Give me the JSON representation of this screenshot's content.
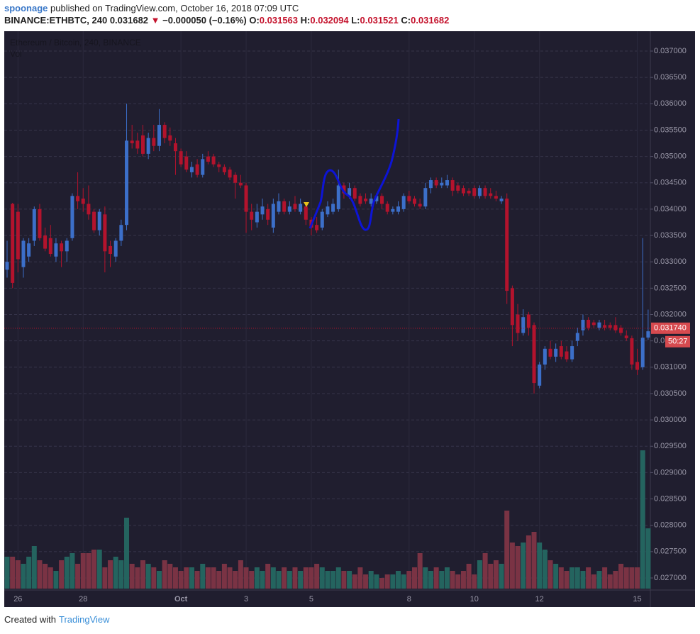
{
  "header": {
    "user": "spoonage",
    "published": "published on TradingView.com, October 16, 2018 07:09 UTC",
    "symbol": "BINANCE:ETHBTC, 240",
    "arrow": "▼",
    "change": "−0.000050 (−0.16%)",
    "o_label": "O:",
    "h_label": "H:",
    "l_label": "L:",
    "c_label": "C:"
  },
  "footer": {
    "created": "Created with",
    "brand": "TradingView"
  },
  "chart_data": {
    "type": "candlestick",
    "title": "Ethereum / Bitcoin, 240, BINANCE",
    "volume_label": "Vol",
    "up_color": "#3c6fc9",
    "down_color": "#b3132d",
    "volume_up_color": "#24645f",
    "volume_down_color": "#7a3344",
    "grid": true,
    "ylim": [
      0.026798,
      0.037377
    ],
    "yticks": [
      {
        "value": 0.027,
        "label": "0.027000"
      },
      {
        "value": 0.0275,
        "label": "0.027500"
      },
      {
        "value": 0.028,
        "label": "0.028000"
      },
      {
        "value": 0.0285,
        "label": "0.028500"
      },
      {
        "value": 0.029,
        "label": "0.029000"
      },
      {
        "value": 0.0295,
        "label": "0.029500"
      },
      {
        "value": 0.03,
        "label": "0.030000"
      },
      {
        "value": 0.0305,
        "label": "0.030500"
      },
      {
        "value": 0.031,
        "label": "0.031000"
      },
      {
        "value": 0.0315,
        "label": "0.031500"
      },
      {
        "value": 0.032,
        "label": "0.032000"
      },
      {
        "value": 0.0325,
        "label": "0.032500"
      },
      {
        "value": 0.033,
        "label": "0.033000"
      },
      {
        "value": 0.0335,
        "label": "0.033500"
      },
      {
        "value": 0.034,
        "label": "0.034000"
      },
      {
        "value": 0.0345,
        "label": "0.034500"
      },
      {
        "value": 0.035,
        "label": "0.035000"
      },
      {
        "value": 0.0355,
        "label": "0.035500"
      },
      {
        "value": 0.036,
        "label": "0.036000"
      },
      {
        "value": 0.0365,
        "label": "0.036500"
      },
      {
        "value": 0.037,
        "label": "0.037000"
      }
    ],
    "last_price": {
      "value": 0.03174,
      "label": "0.031740"
    },
    "countdown": "50:27",
    "categories": [
      null,
      null,
      "26",
      null,
      null,
      null,
      null,
      null,
      null,
      null,
      null,
      null,
      null,
      null,
      "28",
      null,
      null,
      null,
      null,
      null,
      null,
      null,
      null,
      null,
      null,
      null,
      null,
      null,
      null,
      null,
      null,
      null,
      "Oct",
      null,
      null,
      null,
      null,
      null,
      null,
      null,
      null,
      null,
      null,
      null,
      "3",
      null,
      null,
      null,
      null,
      null,
      null,
      null,
      null,
      null,
      null,
      null,
      "5",
      null,
      null,
      null,
      null,
      null,
      null,
      null,
      null,
      null,
      null,
      null,
      null,
      null,
      null,
      null,
      null,
      null,
      "8",
      null,
      null,
      null,
      null,
      null,
      null,
      null,
      null,
      null,
      null,
      null,
      "10",
      null,
      null,
      null,
      null,
      null,
      null,
      null,
      null,
      null,
      null,
      null,
      "12",
      null,
      null,
      null,
      null,
      null,
      null,
      null,
      null,
      null,
      null,
      null,
      null,
      null,
      null,
      null,
      null,
      null,
      "15",
      null,
      null
    ],
    "candles": [
      [
        0.03285,
        0.0334,
        0.0327,
        0.033
      ],
      [
        0.0341,
        0.03412,
        0.0325,
        0.0326
      ],
      [
        0.03395,
        0.0341,
        0.0328,
        0.03305
      ],
      [
        0.0329,
        0.03345,
        0.0327,
        0.0334
      ],
      [
        0.0331,
        0.03345,
        0.033,
        0.03335
      ],
      [
        0.0334,
        0.03405,
        0.0333,
        0.034
      ],
      [
        0.034,
        0.0341,
        0.0334,
        0.03345
      ],
      [
        0.0335,
        0.03365,
        0.0332,
        0.03325
      ],
      [
        0.03345,
        0.0337,
        0.0331,
        0.03315
      ],
      [
        0.0331,
        0.03345,
        0.033,
        0.03335
      ],
      [
        0.03335,
        0.0334,
        0.0329,
        0.0332
      ],
      [
        0.0332,
        0.03345,
        0.033,
        0.0334
      ],
      [
        0.03345,
        0.0343,
        0.0334,
        0.03425
      ],
      [
        0.03425,
        0.0347,
        0.034,
        0.03415
      ],
      [
        0.0342,
        0.0344,
        0.03395,
        0.0341
      ],
      [
        0.0341,
        0.03445,
        0.0338,
        0.0339
      ],
      [
        0.03395,
        0.034,
        0.03355,
        0.0336
      ],
      [
        0.0336,
        0.034,
        0.0335,
        0.03395
      ],
      [
        0.0339,
        0.03405,
        0.0328,
        0.0332
      ],
      [
        0.0333,
        0.0334,
        0.0329,
        0.03315
      ],
      [
        0.0331,
        0.03345,
        0.033,
        0.0334
      ],
      [
        0.0334,
        0.0338,
        0.0333,
        0.0337
      ],
      [
        0.0337,
        0.036,
        0.0336,
        0.0353
      ],
      [
        0.0353,
        0.0356,
        0.03515,
        0.03525
      ],
      [
        0.0353,
        0.03545,
        0.03505,
        0.03515
      ],
      [
        0.0354,
        0.0356,
        0.035,
        0.03505
      ],
      [
        0.03505,
        0.03545,
        0.03495,
        0.03535
      ],
      [
        0.03535,
        0.0356,
        0.0351,
        0.0352
      ],
      [
        0.0352,
        0.0359,
        0.0351,
        0.0356
      ],
      [
        0.0356,
        0.03565,
        0.03525,
        0.03535
      ],
      [
        0.0354,
        0.03555,
        0.0352,
        0.0353
      ],
      [
        0.03525,
        0.03535,
        0.03465,
        0.0351
      ],
      [
        0.0351,
        0.03515,
        0.0348,
        0.03485
      ],
      [
        0.035,
        0.0351,
        0.0347,
        0.03475
      ],
      [
        0.0347,
        0.0349,
        0.0346,
        0.0348
      ],
      [
        0.03485,
        0.03495,
        0.0346,
        0.03465
      ],
      [
        0.03465,
        0.03505,
        0.0346,
        0.03495
      ],
      [
        0.035,
        0.0351,
        0.03485,
        0.0349
      ],
      [
        0.035,
        0.03505,
        0.0348,
        0.03485
      ],
      [
        0.03485,
        0.0349,
        0.0347,
        0.0348
      ],
      [
        0.0348,
        0.03485,
        0.03465,
        0.0347
      ],
      [
        0.03475,
        0.0348,
        0.03455,
        0.0346
      ],
      [
        0.03465,
        0.0347,
        0.0342,
        0.0345
      ],
      [
        0.0345,
        0.03465,
        0.0344,
        0.03445
      ],
      [
        0.03445,
        0.0345,
        0.03355,
        0.03395
      ],
      [
        0.03395,
        0.0341,
        0.0336,
        0.0338
      ],
      [
        0.03375,
        0.0341,
        0.03365,
        0.03395
      ],
      [
        0.0339,
        0.0342,
        0.0338,
        0.03405
      ],
      [
        0.034,
        0.0341,
        0.0337,
        0.0338
      ],
      [
        0.03365,
        0.0342,
        0.03355,
        0.0341
      ],
      [
        0.03395,
        0.0343,
        0.0339,
        0.03415
      ],
      [
        0.03415,
        0.0342,
        0.0339,
        0.03395
      ],
      [
        0.03395,
        0.03415,
        0.0339,
        0.03405
      ],
      [
        0.0341,
        0.03425,
        0.03395,
        0.034
      ],
      [
        0.03395,
        0.0342,
        0.0339,
        0.0341
      ],
      [
        0.03405,
        0.0341,
        0.0337,
        0.0338
      ],
      [
        0.0338,
        0.03385,
        0.0335,
        0.03365
      ],
      [
        0.0337,
        0.03385,
        0.03355,
        0.0336
      ],
      [
        0.03365,
        0.034,
        0.0336,
        0.03395
      ],
      [
        0.0339,
        0.03415,
        0.03385,
        0.03405
      ],
      [
        0.03395,
        0.0342,
        0.0339,
        0.0341
      ],
      [
        0.034,
        0.03475,
        0.03395,
        0.03445
      ],
      [
        0.03445,
        0.0345,
        0.0342,
        0.0343
      ],
      [
        0.03425,
        0.0345,
        0.0342,
        0.0344
      ],
      [
        0.0344,
        0.03445,
        0.03415,
        0.0342
      ],
      [
        0.03425,
        0.0343,
        0.03405,
        0.0341
      ],
      [
        0.0342,
        0.0343,
        0.0341,
        0.03415
      ],
      [
        0.0341,
        0.0343,
        0.03405,
        0.0342
      ],
      [
        0.03415,
        0.0343,
        0.0341,
        0.03425
      ],
      [
        0.03425,
        0.0343,
        0.034,
        0.0341
      ],
      [
        0.0341,
        0.03415,
        0.0339,
        0.03395
      ],
      [
        0.03395,
        0.03405,
        0.0339,
        0.034
      ],
      [
        0.03395,
        0.03415,
        0.0339,
        0.03405
      ],
      [
        0.034,
        0.0343,
        0.03395,
        0.03425
      ],
      [
        0.03425,
        0.03435,
        0.0341,
        0.03415
      ],
      [
        0.0342,
        0.03425,
        0.03405,
        0.0341
      ],
      [
        0.0341,
        0.0342,
        0.034,
        0.03405
      ],
      [
        0.03405,
        0.0345,
        0.034,
        0.0344
      ],
      [
        0.0344,
        0.0346,
        0.0343,
        0.03455
      ],
      [
        0.03455,
        0.0346,
        0.0344,
        0.03445
      ],
      [
        0.03445,
        0.0346,
        0.0344,
        0.0345
      ],
      [
        0.03445,
        0.03465,
        0.0344,
        0.03455
      ],
      [
        0.03455,
        0.0346,
        0.03425,
        0.03435
      ],
      [
        0.03445,
        0.0345,
        0.0343,
        0.03435
      ],
      [
        0.0344,
        0.03445,
        0.03425,
        0.0343
      ],
      [
        0.03435,
        0.0344,
        0.03425,
        0.0343
      ],
      [
        0.0344,
        0.03445,
        0.0342,
        0.03425
      ],
      [
        0.03425,
        0.03445,
        0.0342,
        0.0344
      ],
      [
        0.0344,
        0.03445,
        0.0342,
        0.03425
      ],
      [
        0.0343,
        0.0344,
        0.0342,
        0.03425
      ],
      [
        0.03425,
        0.03435,
        0.03415,
        0.0342
      ],
      [
        0.03415,
        0.03425,
        0.0341,
        0.0342
      ],
      [
        0.0342,
        0.0343,
        0.0322,
        0.03245
      ],
      [
        0.0325,
        0.03255,
        0.0314,
        0.0318
      ],
      [
        0.032,
        0.0322,
        0.0315,
        0.03165
      ],
      [
        0.03165,
        0.0321,
        0.0316,
        0.03195
      ],
      [
        0.032,
        0.03205,
        0.0316,
        0.03175
      ],
      [
        0.0318,
        0.03185,
        0.0305,
        0.0307
      ],
      [
        0.03065,
        0.0311,
        0.0306,
        0.03105
      ],
      [
        0.03105,
        0.0314,
        0.03095,
        0.03135
      ],
      [
        0.03135,
        0.0315,
        0.03115,
        0.0312
      ],
      [
        0.0312,
        0.03145,
        0.0311,
        0.03135
      ],
      [
        0.0314,
        0.0315,
        0.03115,
        0.0312
      ],
      [
        0.0313,
        0.0314,
        0.0311,
        0.03115
      ],
      [
        0.03115,
        0.0315,
        0.0311,
        0.0314
      ],
      [
        0.0315,
        0.03175,
        0.0314,
        0.03165
      ],
      [
        0.0317,
        0.032,
        0.0316,
        0.0319
      ],
      [
        0.0319,
        0.03195,
        0.0317,
        0.03175
      ],
      [
        0.03185,
        0.0319,
        0.03175,
        0.0318
      ],
      [
        0.03175,
        0.0319,
        0.0317,
        0.03185
      ],
      [
        0.0318,
        0.0319,
        0.0317,
        0.03175
      ],
      [
        0.0318,
        0.03185,
        0.0317,
        0.03175
      ],
      [
        0.0318,
        0.03195,
        0.03165,
        0.0317
      ],
      [
        0.03175,
        0.0318,
        0.0316,
        0.03165
      ],
      [
        0.0316,
        0.0317,
        0.0315,
        0.03155
      ],
      [
        0.03155,
        0.0316,
        0.03095,
        0.03105
      ],
      [
        0.0311,
        0.03135,
        0.03085,
        0.03095
      ],
      [
        0.031,
        0.03345,
        0.03095,
        0.03156
      ],
      [
        0.031563,
        0.032094,
        0.031521,
        0.031682
      ]
    ],
    "volume": [
      45,
      45,
      40,
      35,
      45,
      60,
      40,
      35,
      30,
      25,
      40,
      45,
      50,
      35,
      50,
      50,
      55,
      55,
      30,
      40,
      45,
      40,
      100,
      35,
      30,
      40,
      35,
      30,
      25,
      40,
      35,
      30,
      25,
      30,
      30,
      25,
      35,
      30,
      30,
      25,
      35,
      30,
      25,
      40,
      30,
      25,
      30,
      25,
      35,
      30,
      25,
      30,
      25,
      30,
      25,
      30,
      30,
      35,
      30,
      25,
      25,
      30,
      25,
      25,
      20,
      30,
      20,
      25,
      20,
      15,
      20,
      20,
      25,
      20,
      25,
      30,
      50,
      30,
      25,
      30,
      25,
      30,
      25,
      20,
      25,
      35,
      20,
      40,
      50,
      35,
      40,
      35,
      110,
      65,
      60,
      65,
      75,
      80,
      65,
      55,
      40,
      35,
      30,
      25,
      30,
      30,
      25,
      30,
      20,
      25,
      30,
      20,
      25,
      35,
      30,
      30,
      30,
      195,
      85
    ]
  }
}
